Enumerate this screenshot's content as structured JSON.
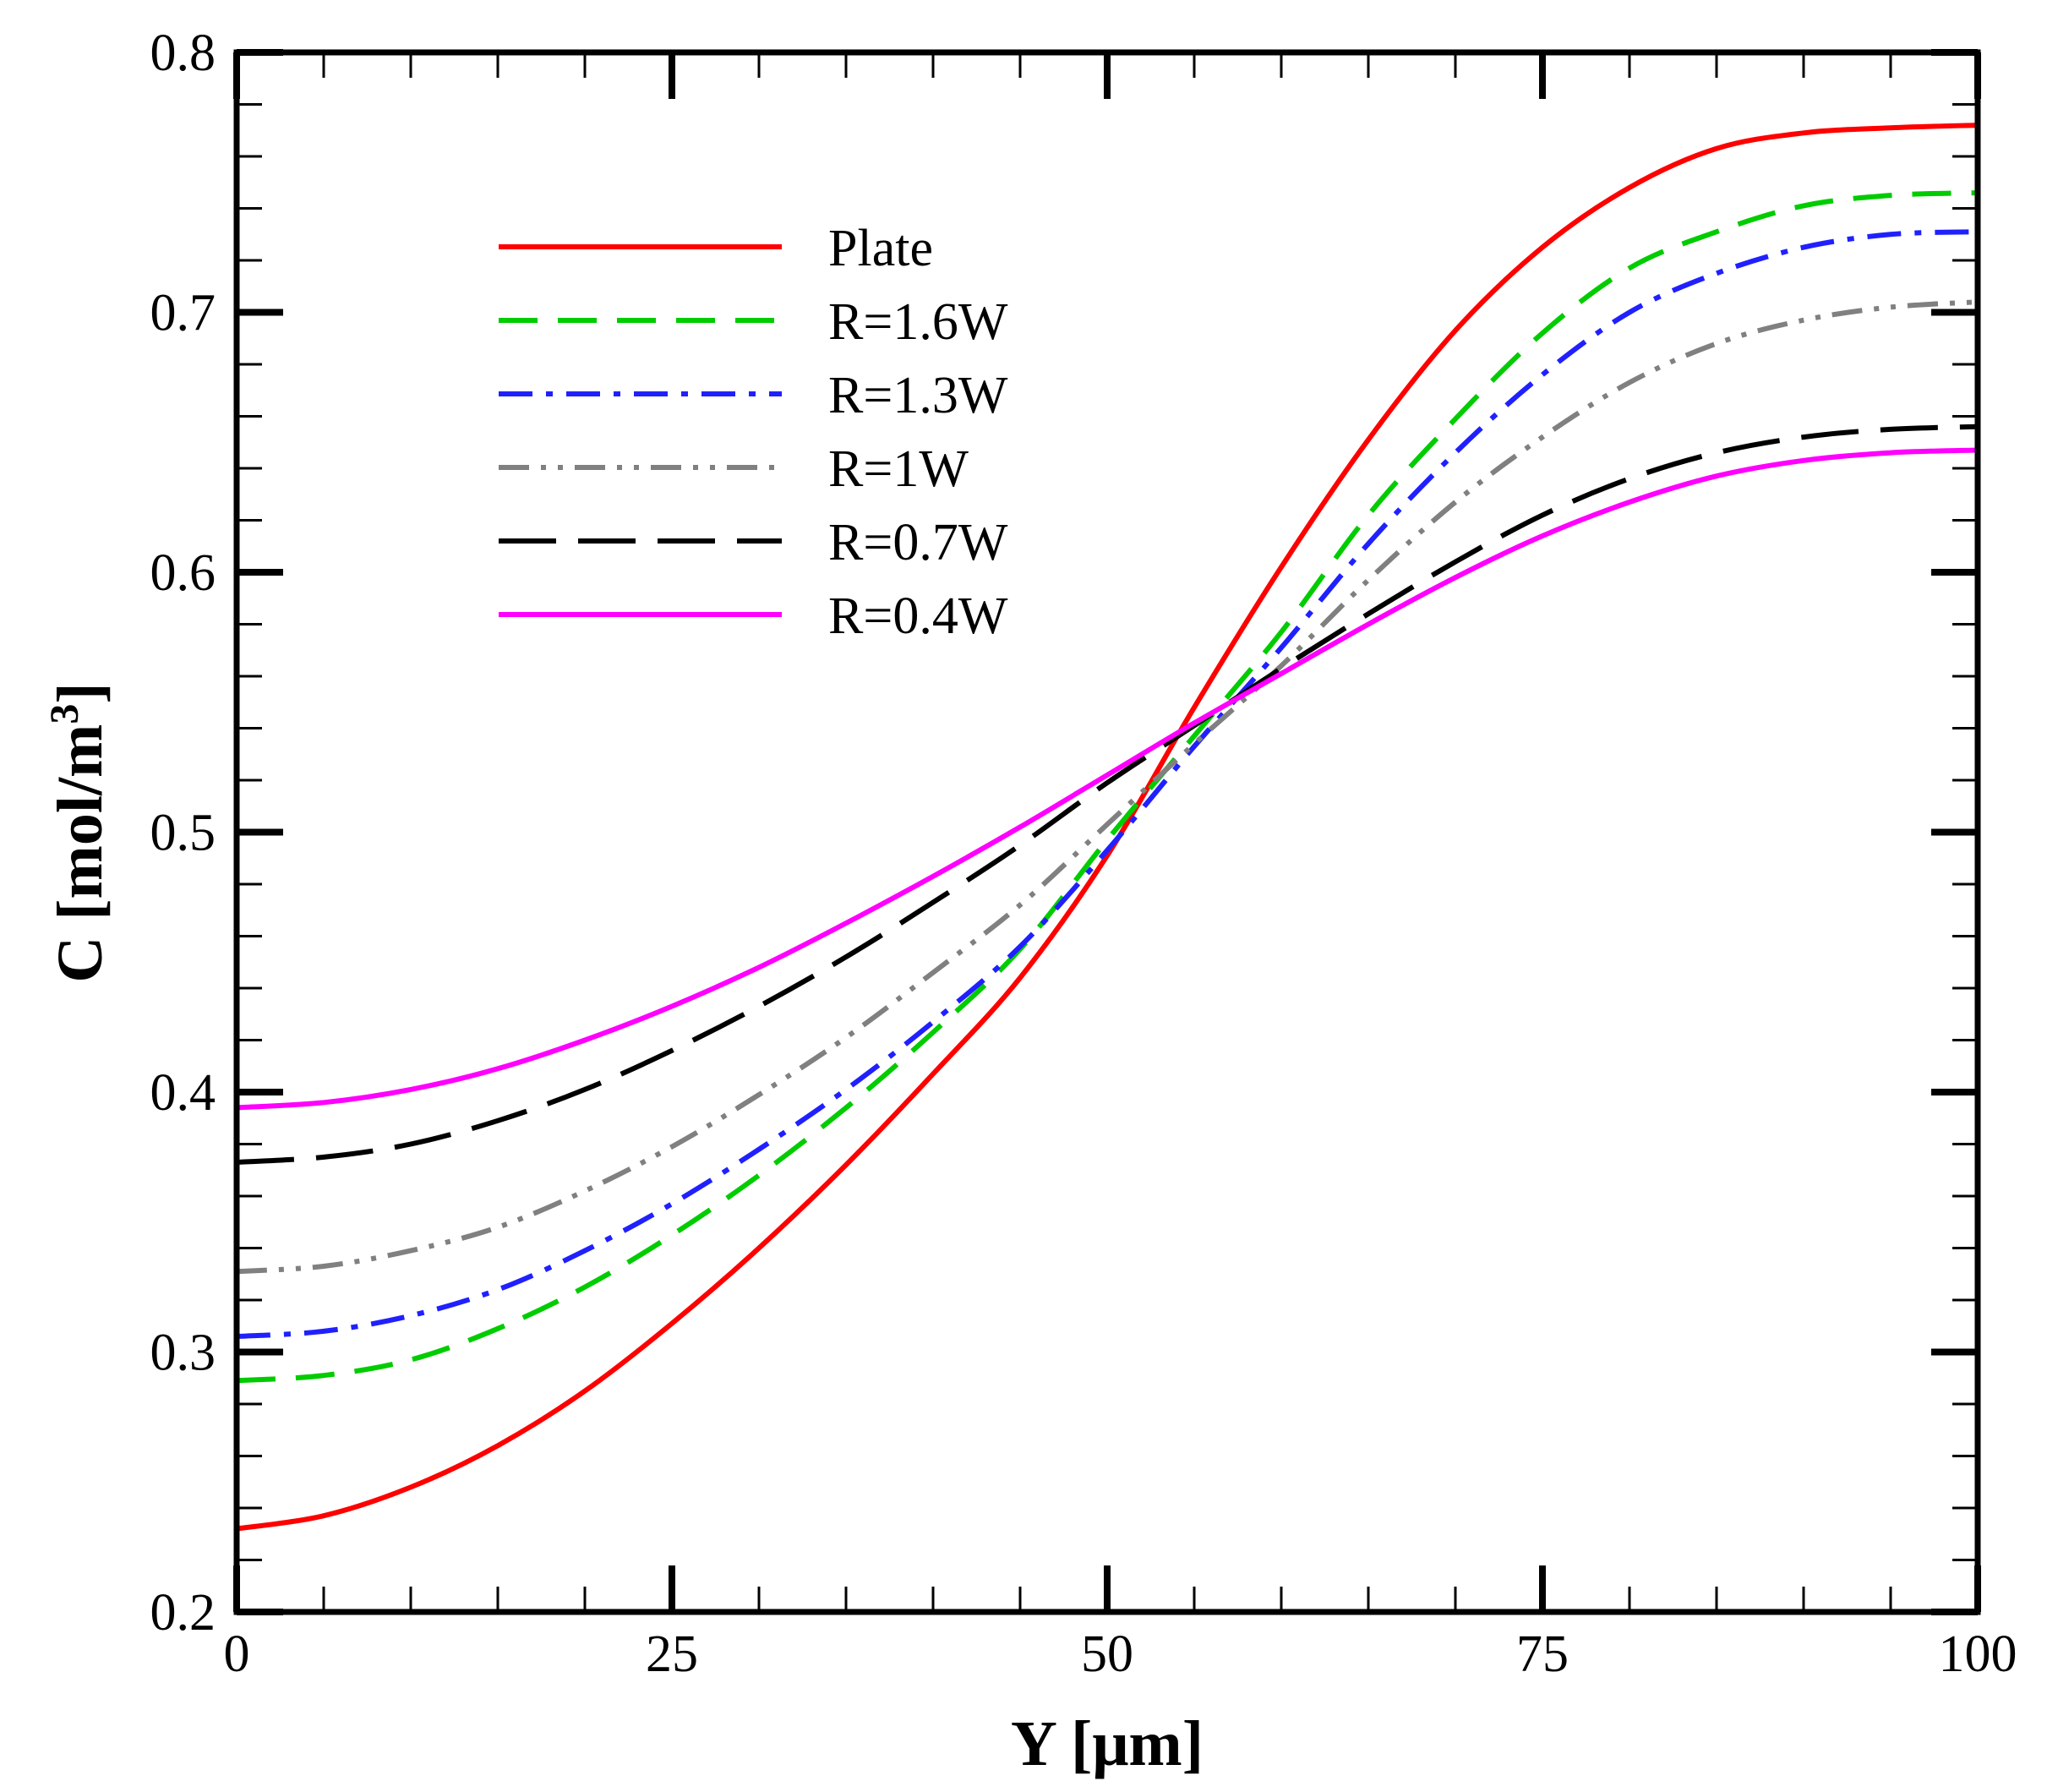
{
  "chart_data": {
    "type": "line",
    "xlabel": "Y [μm]",
    "ylabel_main": "C [mol/m",
    "ylabel_sup": "3",
    "ylabel_close": "]",
    "xlim": [
      0,
      100
    ],
    "ylim": [
      0.2,
      0.8
    ],
    "xticks": [
      0,
      25,
      50,
      75,
      100
    ],
    "xtick_labels": [
      "0",
      "25",
      "50",
      "75",
      "100"
    ],
    "yticks": [
      0.2,
      0.3,
      0.4,
      0.5,
      0.6,
      0.7,
      0.8
    ],
    "ytick_labels": [
      "0.2",
      "0.3",
      "0.4",
      "0.5",
      "0.6",
      "0.7",
      "0.8"
    ],
    "legend_position": "top-left",
    "x": [
      0,
      5,
      10,
      15,
      20,
      25,
      30,
      35,
      40,
      45,
      50,
      55,
      60,
      65,
      70,
      75,
      80,
      85,
      90,
      95,
      100
    ],
    "series": [
      {
        "name": "Plate",
        "color": "#ff0000",
        "dash": "solid",
        "values": [
          0.232,
          0.237,
          0.248,
          0.264,
          0.285,
          0.311,
          0.34,
          0.372,
          0.407,
          0.444,
          0.491,
          0.548,
          0.602,
          0.651,
          0.693,
          0.725,
          0.748,
          0.763,
          0.769,
          0.771,
          0.772
        ]
      },
      {
        "name": "R=1.6W",
        "color": "#00cc00",
        "dash": "dash",
        "values": [
          0.289,
          0.291,
          0.297,
          0.309,
          0.325,
          0.345,
          0.368,
          0.394,
          0.423,
          0.455,
          0.497,
          0.537,
          0.577,
          0.622,
          0.659,
          0.692,
          0.717,
          0.731,
          0.741,
          0.745,
          0.746
        ]
      },
      {
        "name": "R=1.3W",
        "color": "#2020ff",
        "dash": "dashdot",
        "values": [
          0.306,
          0.308,
          0.314,
          0.324,
          0.339,
          0.357,
          0.378,
          0.401,
          0.427,
          0.456,
          0.493,
          0.533,
          0.571,
          0.611,
          0.646,
          0.676,
          0.7,
          0.715,
          0.725,
          0.73,
          0.731
        ]
      },
      {
        "name": "R=1W",
        "color": "#808080",
        "dash": "dashdotdot",
        "values": [
          0.331,
          0.333,
          0.339,
          0.348,
          0.362,
          0.379,
          0.399,
          0.421,
          0.446,
          0.472,
          0.503,
          0.534,
          0.564,
          0.597,
          0.627,
          0.652,
          0.673,
          0.688,
          0.697,
          0.702,
          0.704
        ]
      },
      {
        "name": "R=0.7W",
        "color": "#000000",
        "dash": "longdash",
        "values": [
          0.373,
          0.375,
          0.38,
          0.389,
          0.401,
          0.416,
          0.433,
          0.452,
          0.473,
          0.495,
          0.519,
          0.541,
          0.563,
          0.584,
          0.604,
          0.622,
          0.636,
          0.646,
          0.652,
          0.655,
          0.656
        ]
      },
      {
        "name": "R=0.4W",
        "color": "#ff00ff",
        "dash": "solid",
        "values": [
          0.394,
          0.396,
          0.401,
          0.409,
          0.42,
          0.433,
          0.448,
          0.465,
          0.483,
          0.502,
          0.522,
          0.542,
          0.561,
          0.58,
          0.598,
          0.614,
          0.627,
          0.637,
          0.643,
          0.646,
          0.647
        ]
      }
    ]
  }
}
